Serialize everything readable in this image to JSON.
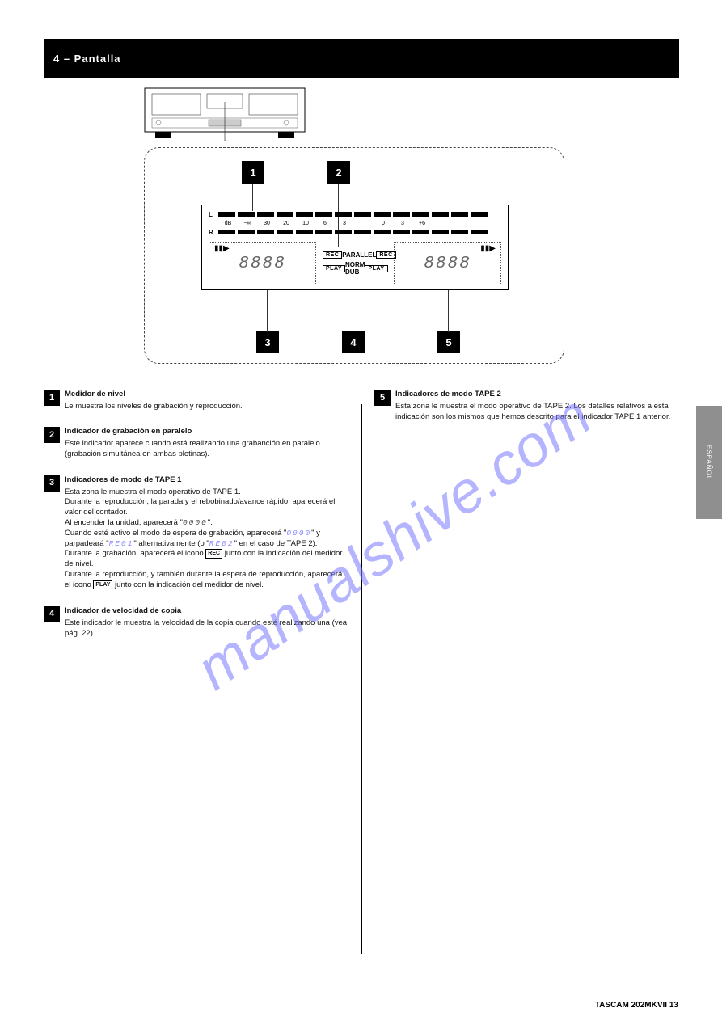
{
  "header": {
    "title": "4 – Pantalla"
  },
  "side_tab": "ESPAÑOL",
  "watermark": "manualshive.com",
  "diagram": {
    "callouts": {
      "top_left": "1",
      "top_right": "2",
      "bottom_a": "3",
      "bottom_b": "4",
      "bottom_c": "5"
    },
    "lcd": {
      "left_labels": [
        "L",
        "R"
      ],
      "db_scale": [
        "dB",
        "−∞",
        "30",
        "20",
        "10",
        "6",
        "3",
        "",
        "0",
        "3",
        "+6"
      ],
      "seg_count": 14,
      "center": {
        "rec": "REC",
        "parallel": "PARALLEL",
        "play": "PLAY",
        "norm_dub": "NORM DUB"
      },
      "deck_display": "8888",
      "transport_icons": "▮▮▶"
    }
  },
  "content": {
    "items": [
      {
        "num": "1",
        "heading": "Medidor de nivel",
        "body": "Le muestra los niveles de grabación y reproducción."
      },
      {
        "num": "2",
        "heading": "Indicador de grabación en paralelo",
        "body": "Este indicador aparece cuando está realizando una grabanción en paralelo (grabación simultánea en ambas pletinas)."
      },
      {
        "num": "3",
        "heading": "Indicadores de modo de TAPE 1",
        "body": "Esta zona le muestra el modo operativo de TAPE 1.\nDurante la reproducción, la parada y el rebobinado/avance rápido, aparecerá el valor del contador.\nAl encender la unidad, aparecerá \"[0000a]\".\nCuando esté activo el modo de espera de grabación, aparecerá \"[0000b]\" y parpadeará \"[RE01c]\" alternativamente (o \"[RE02d]\" en el caso de TAPE 2).\nDurante la grabación, aparecerá el icono [RECBADGE] junto con la indicación del medidor de nivel.\nDurante la reproducción, y también durante la espera de reproducción, aparecerá el icono [PLAYBADGE] junto con la indicación del medidor de nivel.",
        "seg_0000a": "0000",
        "seg_0000b": "0000",
        "seg_RE01": "RE01",
        "seg_RE02": "RE02",
        "rec_badge": "REC",
        "play_badge": "PLAY"
      },
      {
        "num": "4",
        "heading": "Indicador de velocidad de copia",
        "body": "Este indicador le muestra la velocidad de la copia cuando esté realizando una (vea pág. 22)."
      },
      {
        "num": "5",
        "heading": "Indicadores de modo TAPE 2",
        "body": "Esta zona le muestra el modo operativo de TAPE 2.\nLos detalles relativos a esta indicación son los mismos que hemos descrito para el indicador TAPE 1 anterior."
      }
    ]
  },
  "page_number": "TASCAM  202MKVII  13"
}
